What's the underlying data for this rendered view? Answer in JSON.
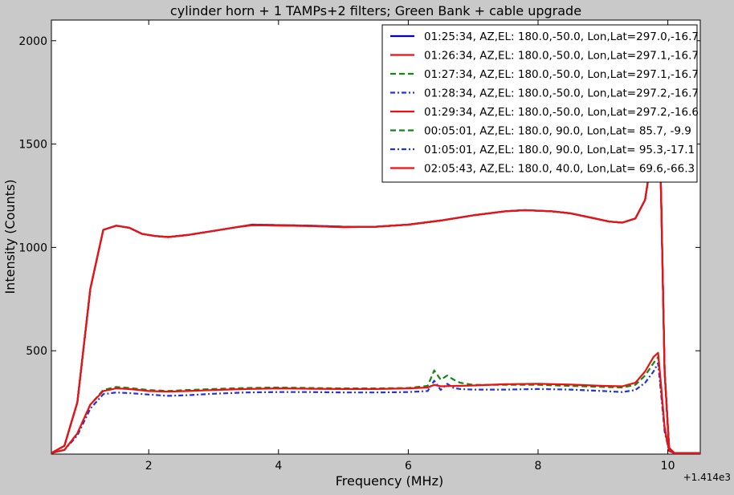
{
  "chart_data": {
    "type": "line",
    "title": "cylinder horn + 1 TAMPs+2 filters; Green Bank + cable upgrade",
    "xlabel": "Frequency (MHz)",
    "ylabel": "Intensity (Counts)",
    "x_offset_label": "+1.414e3",
    "xlim": [
      0.5,
      10.5
    ],
    "ylim": [
      0,
      2100
    ],
    "x_ticks": [
      2,
      4,
      6,
      8,
      10
    ],
    "x_tick_labels": [
      "2",
      "4",
      "6",
      "8",
      "10"
    ],
    "y_ticks": [
      500,
      1000,
      1500,
      2000
    ],
    "y_tick_labels": [
      "500",
      "1000",
      "1500",
      "2000"
    ],
    "grid": false,
    "legend_position": "top-right",
    "series": [
      {
        "name": "01:25:34, AZ,EL: 180.0,-50.0, Lon,Lat=297.0,-16.7",
        "color": "#0000cc",
        "dash": "solid",
        "points": [
          [
            0.5,
            5
          ],
          [
            0.7,
            40
          ],
          [
            0.9,
            250
          ],
          [
            1.1,
            800
          ],
          [
            1.3,
            1085
          ],
          [
            1.5,
            1105
          ],
          [
            1.7,
            1095
          ],
          [
            1.9,
            1065
          ],
          [
            2.1,
            1055
          ],
          [
            2.3,
            1050
          ],
          [
            2.6,
            1060
          ],
          [
            3.0,
            1080
          ],
          [
            3.4,
            1100
          ],
          [
            3.6,
            1110
          ],
          [
            4.0,
            1108
          ],
          [
            4.5,
            1105
          ],
          [
            5.0,
            1100
          ],
          [
            5.5,
            1100
          ],
          [
            6.0,
            1110
          ],
          [
            6.5,
            1130
          ],
          [
            7.0,
            1155
          ],
          [
            7.5,
            1175
          ],
          [
            7.8,
            1180
          ],
          [
            8.2,
            1175
          ],
          [
            8.5,
            1165
          ],
          [
            8.8,
            1145
          ],
          [
            9.1,
            1125
          ],
          [
            9.3,
            1120
          ],
          [
            9.5,
            1140
          ],
          [
            9.65,
            1230
          ],
          [
            9.78,
            1500
          ],
          [
            9.85,
            1900
          ],
          [
            9.9,
            1200
          ],
          [
            9.95,
            400
          ],
          [
            10.02,
            30
          ],
          [
            10.1,
            5
          ],
          [
            10.5,
            5
          ]
        ]
      },
      {
        "name": "01:26:34, AZ,EL: 180.0,-50.0, Lon,Lat=297.1,-16.7",
        "color": "#ee1111",
        "dash": "solid",
        "points": [
          [
            0.5,
            5
          ],
          [
            0.7,
            40
          ],
          [
            0.9,
            250
          ],
          [
            1.1,
            800
          ],
          [
            1.3,
            1085
          ],
          [
            1.5,
            1105
          ],
          [
            1.7,
            1095
          ],
          [
            1.9,
            1065
          ],
          [
            2.1,
            1055
          ],
          [
            2.3,
            1050
          ],
          [
            2.6,
            1060
          ],
          [
            3.0,
            1080
          ],
          [
            3.4,
            1100
          ],
          [
            3.6,
            1108
          ],
          [
            4.0,
            1106
          ],
          [
            4.5,
            1103
          ],
          [
            5.0,
            1098
          ],
          [
            5.5,
            1100
          ],
          [
            6.0,
            1110
          ],
          [
            6.5,
            1130
          ],
          [
            7.0,
            1155
          ],
          [
            7.5,
            1175
          ],
          [
            7.8,
            1180
          ],
          [
            8.2,
            1175
          ],
          [
            8.5,
            1165
          ],
          [
            8.8,
            1145
          ],
          [
            9.1,
            1125
          ],
          [
            9.3,
            1120
          ],
          [
            9.5,
            1140
          ],
          [
            9.65,
            1230
          ],
          [
            9.78,
            1500
          ],
          [
            9.85,
            1900
          ],
          [
            9.9,
            1200
          ],
          [
            9.95,
            400
          ],
          [
            10.02,
            30
          ],
          [
            10.1,
            5
          ],
          [
            10.5,
            5
          ]
        ]
      },
      {
        "name": "01:27:34, AZ,EL: 180.0,-50.0, Lon,Lat=297.1,-16.7",
        "color": "#118811",
        "dash": "dashed",
        "points": [
          [
            0.5,
            5
          ],
          [
            0.7,
            40
          ],
          [
            0.9,
            250
          ],
          [
            1.1,
            800
          ],
          [
            1.3,
            1085
          ],
          [
            1.5,
            1105
          ],
          [
            1.7,
            1095
          ],
          [
            1.9,
            1065
          ],
          [
            2.1,
            1055
          ],
          [
            2.3,
            1050
          ],
          [
            2.6,
            1060
          ],
          [
            3.0,
            1080
          ],
          [
            3.4,
            1100
          ],
          [
            3.6,
            1110
          ],
          [
            4.0,
            1108
          ],
          [
            4.5,
            1105
          ],
          [
            5.0,
            1100
          ],
          [
            5.5,
            1100
          ],
          [
            6.0,
            1110
          ],
          [
            6.5,
            1130
          ],
          [
            7.0,
            1155
          ],
          [
            7.5,
            1175
          ],
          [
            7.8,
            1180
          ],
          [
            8.2,
            1175
          ],
          [
            8.5,
            1165
          ],
          [
            8.8,
            1145
          ],
          [
            9.1,
            1125
          ],
          [
            9.3,
            1120
          ],
          [
            9.5,
            1140
          ],
          [
            9.65,
            1230
          ],
          [
            9.78,
            1500
          ],
          [
            9.85,
            1900
          ],
          [
            9.9,
            1200
          ],
          [
            9.95,
            400
          ],
          [
            10.02,
            30
          ],
          [
            10.1,
            5
          ],
          [
            10.5,
            5
          ]
        ]
      },
      {
        "name": "01:28:34, AZ,EL: 180.0,-50.0, Lon,Lat=297.2,-16.7",
        "color": "#2233dd",
        "dash": "dashdot",
        "points": [
          [
            0.5,
            5
          ],
          [
            0.7,
            40
          ],
          [
            0.9,
            250
          ],
          [
            1.1,
            800
          ],
          [
            1.3,
            1085
          ],
          [
            1.5,
            1105
          ],
          [
            1.7,
            1095
          ],
          [
            1.9,
            1065
          ],
          [
            2.1,
            1055
          ],
          [
            2.3,
            1050
          ],
          [
            2.6,
            1060
          ],
          [
            3.0,
            1080
          ],
          [
            3.4,
            1100
          ],
          [
            3.6,
            1110
          ],
          [
            4.0,
            1108
          ],
          [
            4.5,
            1105
          ],
          [
            5.0,
            1100
          ],
          [
            5.5,
            1100
          ],
          [
            6.0,
            1110
          ],
          [
            6.5,
            1130
          ],
          [
            7.0,
            1155
          ],
          [
            7.5,
            1175
          ],
          [
            7.8,
            1180
          ],
          [
            8.2,
            1175
          ],
          [
            8.5,
            1165
          ],
          [
            8.8,
            1145
          ],
          [
            9.1,
            1125
          ],
          [
            9.3,
            1120
          ],
          [
            9.5,
            1140
          ],
          [
            9.65,
            1230
          ],
          [
            9.78,
            1500
          ],
          [
            9.85,
            1900
          ],
          [
            9.9,
            1200
          ],
          [
            9.95,
            400
          ],
          [
            10.02,
            30
          ],
          [
            10.1,
            5
          ],
          [
            10.5,
            5
          ]
        ]
      },
      {
        "name": "01:29:34, AZ,EL: 180.0,-50.0, Lon,Lat=297.2,-16.6",
        "color": "#ee1111",
        "dash": "solid",
        "points": [
          [
            0.5,
            5
          ],
          [
            0.7,
            40
          ],
          [
            0.9,
            250
          ],
          [
            1.1,
            800
          ],
          [
            1.3,
            1085
          ],
          [
            1.5,
            1105
          ],
          [
            1.7,
            1095
          ],
          [
            1.9,
            1065
          ],
          [
            2.1,
            1055
          ],
          [
            2.3,
            1050
          ],
          [
            2.6,
            1060
          ],
          [
            3.0,
            1080
          ],
          [
            3.4,
            1100
          ],
          [
            3.6,
            1108
          ],
          [
            4.0,
            1106
          ],
          [
            4.5,
            1103
          ],
          [
            5.0,
            1098
          ],
          [
            5.5,
            1100
          ],
          [
            6.0,
            1110
          ],
          [
            6.5,
            1130
          ],
          [
            7.0,
            1155
          ],
          [
            7.5,
            1175
          ],
          [
            7.8,
            1180
          ],
          [
            8.2,
            1175
          ],
          [
            8.5,
            1165
          ],
          [
            8.8,
            1145
          ],
          [
            9.1,
            1125
          ],
          [
            9.3,
            1120
          ],
          [
            9.5,
            1140
          ],
          [
            9.65,
            1230
          ],
          [
            9.78,
            1500
          ],
          [
            9.85,
            1900
          ],
          [
            9.9,
            1200
          ],
          [
            9.95,
            400
          ],
          [
            10.02,
            30
          ],
          [
            10.1,
            5
          ],
          [
            10.5,
            5
          ]
        ]
      },
      {
        "name": "00:05:01, AZ,EL: 180.0, 90.0, Lon,Lat= 85.7, -9.9",
        "color": "#118811",
        "dash": "dashed",
        "points": [
          [
            0.5,
            5
          ],
          [
            0.7,
            20
          ],
          [
            0.9,
            100
          ],
          [
            1.1,
            240
          ],
          [
            1.3,
            310
          ],
          [
            1.5,
            325
          ],
          [
            1.7,
            320
          ],
          [
            2.0,
            310
          ],
          [
            2.3,
            305
          ],
          [
            2.6,
            310
          ],
          [
            3.0,
            315
          ],
          [
            3.5,
            320
          ],
          [
            4.0,
            322
          ],
          [
            4.5,
            320
          ],
          [
            5.0,
            318
          ],
          [
            5.5,
            318
          ],
          [
            6.0,
            320
          ],
          [
            6.3,
            330
          ],
          [
            6.4,
            405
          ],
          [
            6.5,
            360
          ],
          [
            6.6,
            380
          ],
          [
            6.7,
            360
          ],
          [
            6.8,
            345
          ],
          [
            7.0,
            335
          ],
          [
            7.5,
            335
          ],
          [
            8.0,
            335
          ],
          [
            8.5,
            330
          ],
          [
            9.0,
            325
          ],
          [
            9.3,
            322
          ],
          [
            9.5,
            335
          ],
          [
            9.65,
            380
          ],
          [
            9.78,
            440
          ],
          [
            9.85,
            470
          ],
          [
            9.9,
            300
          ],
          [
            9.95,
            120
          ],
          [
            10.02,
            15
          ],
          [
            10.1,
            5
          ],
          [
            10.5,
            5
          ]
        ]
      },
      {
        "name": "01:05:01, AZ,EL: 180.0, 90.0, Lon,Lat= 95.3,-17.1",
        "color": "#2233dd",
        "dash": "dashdot",
        "points": [
          [
            0.5,
            5
          ],
          [
            0.7,
            20
          ],
          [
            0.9,
            90
          ],
          [
            1.1,
            220
          ],
          [
            1.3,
            290
          ],
          [
            1.5,
            298
          ],
          [
            1.7,
            295
          ],
          [
            2.0,
            288
          ],
          [
            2.3,
            282
          ],
          [
            2.6,
            285
          ],
          [
            3.0,
            292
          ],
          [
            3.5,
            298
          ],
          [
            4.0,
            300
          ],
          [
            4.5,
            300
          ],
          [
            5.0,
            298
          ],
          [
            5.5,
            298
          ],
          [
            6.0,
            300
          ],
          [
            6.3,
            305
          ],
          [
            6.4,
            355
          ],
          [
            6.5,
            310
          ],
          [
            6.6,
            340
          ],
          [
            6.7,
            320
          ],
          [
            6.8,
            315
          ],
          [
            7.0,
            312
          ],
          [
            7.5,
            312
          ],
          [
            8.0,
            315
          ],
          [
            8.5,
            312
          ],
          [
            9.0,
            305
          ],
          [
            9.3,
            300
          ],
          [
            9.5,
            310
          ],
          [
            9.65,
            345
          ],
          [
            9.78,
            400
          ],
          [
            9.85,
            440
          ],
          [
            9.9,
            280
          ],
          [
            9.95,
            110
          ],
          [
            10.02,
            15
          ],
          [
            10.1,
            5
          ],
          [
            10.5,
            5
          ]
        ]
      },
      {
        "name": "02:05:43, AZ,EL: 180.0, 40.0, Lon,Lat= 69.6,-66.3",
        "color": "#ee1111",
        "dash": "solid",
        "points": [
          [
            0.5,
            5
          ],
          [
            0.7,
            20
          ],
          [
            0.9,
            100
          ],
          [
            1.1,
            240
          ],
          [
            1.3,
            305
          ],
          [
            1.5,
            318
          ],
          [
            1.7,
            315
          ],
          [
            2.0,
            305
          ],
          [
            2.3,
            302
          ],
          [
            2.6,
            305
          ],
          [
            3.0,
            310
          ],
          [
            3.5,
            315
          ],
          [
            4.0,
            318
          ],
          [
            4.5,
            316
          ],
          [
            5.0,
            315
          ],
          [
            5.5,
            315
          ],
          [
            6.0,
            318
          ],
          [
            6.3,
            322
          ],
          [
            6.4,
            335
          ],
          [
            6.5,
            328
          ],
          [
            7.0,
            332
          ],
          [
            7.5,
            338
          ],
          [
            8.0,
            340
          ],
          [
            8.5,
            336
          ],
          [
            9.0,
            330
          ],
          [
            9.3,
            328
          ],
          [
            9.5,
            345
          ],
          [
            9.65,
            400
          ],
          [
            9.78,
            470
          ],
          [
            9.85,
            490
          ],
          [
            9.9,
            320
          ],
          [
            9.95,
            130
          ],
          [
            10.02,
            15
          ],
          [
            10.1,
            5
          ],
          [
            10.5,
            5
          ]
        ]
      }
    ]
  }
}
